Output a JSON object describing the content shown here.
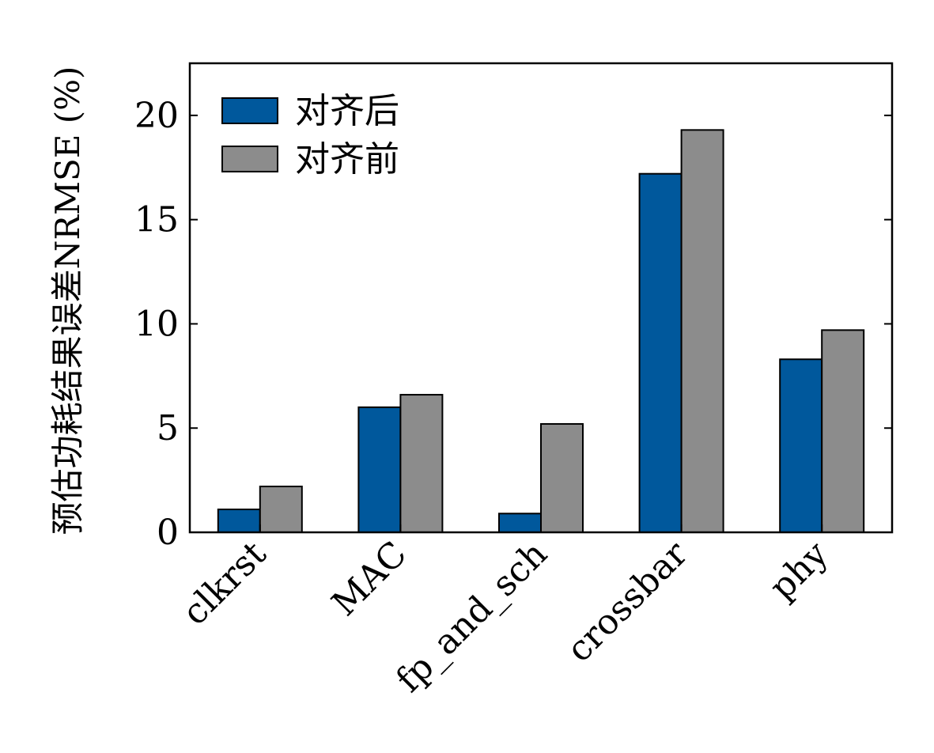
{
  "chart_data": {
    "type": "bar",
    "categories": [
      "clkrst",
      "MAC",
      "fp_and_sch",
      "crossbar",
      "phy"
    ],
    "series": [
      {
        "name": "对齐后",
        "color": "#00589c",
        "values": [
          1.1,
          6.0,
          0.9,
          17.2,
          8.3
        ]
      },
      {
        "name": "对齐前",
        "color": "#8c8c8c",
        "values": [
          2.2,
          6.6,
          5.2,
          19.3,
          9.7
        ]
      }
    ],
    "ylabel": "预估功耗结果误差NRMSE (%)",
    "xlabel": "",
    "ylim": [
      0,
      22.5
    ],
    "yticks": [
      0,
      5,
      10,
      15,
      20
    ],
    "legend_position": "top-left",
    "grid": false
  }
}
